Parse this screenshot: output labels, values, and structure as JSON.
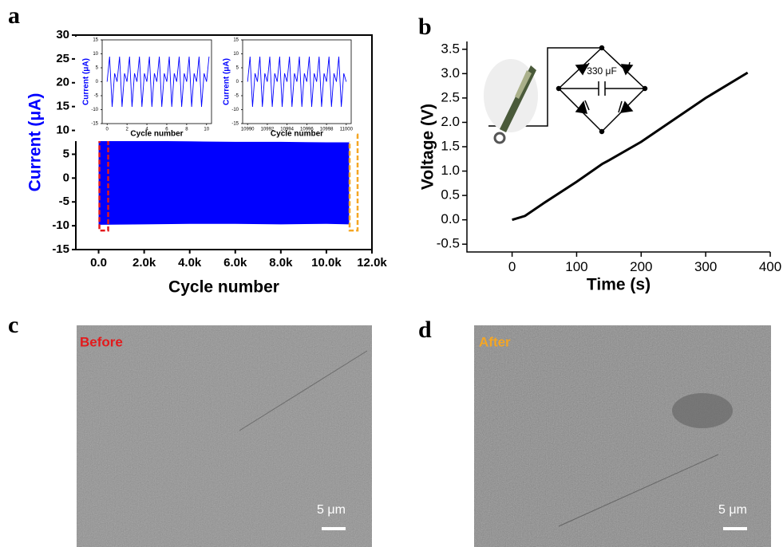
{
  "panel_labels": [
    "a",
    "b",
    "c",
    "d"
  ],
  "chart_data": [
    {
      "type": "area",
      "xlabel": "Cycle number",
      "ylabel": "Current (μA)",
      "color": "#0000ff",
      "x": [
        0,
        2000,
        4000,
        6000,
        8000,
        10000,
        11000
      ],
      "upper": [
        7.9,
        7.8,
        7.7,
        7.6,
        7.6,
        7.5,
        7.5
      ],
      "lower": [
        -9.8,
        -9.7,
        -9.6,
        -9.6,
        -9.7,
        -9.6,
        -9.7
      ],
      "xlim": [
        -1000,
        12000
      ],
      "xticks": [
        {
          "value": 0,
          "label": "0.0"
        },
        {
          "value": 2000,
          "label": "2.0k"
        },
        {
          "value": 4000,
          "label": "4.0k"
        },
        {
          "value": 6000,
          "label": "6.0k"
        },
        {
          "value": 8000,
          "label": "8.0k"
        },
        {
          "value": 10000,
          "label": "10.0k"
        },
        {
          "value": 12000,
          "label": "12.0k"
        }
      ],
      "ylim": [
        -15,
        30
      ],
      "yticks": [
        -15,
        -10,
        -5,
        0,
        5,
        10,
        15,
        20,
        25,
        30
      ],
      "highlights": [
        {
          "x": [
            35,
            420
          ],
          "y": [
            -11,
            9.1
          ],
          "color": "#e31a1c"
        },
        {
          "x": [
            11020,
            11370
          ],
          "y": [
            -11,
            9.1
          ],
          "color": "#f5a623"
        }
      ],
      "insets": [
        {
          "type": "line",
          "xlabel": "Cycle number",
          "ylabel": "Current (μA)",
          "color": "#0000ff",
          "x": [
            0,
            0.25,
            0.5,
            0.75,
            1,
            1.25,
            1.5,
            1.75,
            2,
            2.25,
            2.5,
            2.75,
            3,
            3.25,
            3.5,
            3.75,
            4,
            4.25,
            4.5,
            4.75,
            5,
            5.25,
            5.5,
            5.75,
            6,
            6.25,
            6.5,
            6.75,
            7,
            7.25,
            7.5,
            7.75,
            8,
            8.25,
            8.5,
            8.75,
            9,
            9.25,
            9.5,
            9.75,
            10,
            10.25
          ],
          "values": [
            0,
            9,
            -9,
            3,
            0,
            9,
            -9,
            3,
            0,
            9,
            -9,
            3,
            0,
            9,
            -9,
            3,
            0,
            9,
            -9,
            3,
            0,
            9,
            -9,
            3,
            0,
            9,
            -9,
            3,
            0,
            9,
            -9,
            3,
            0,
            9,
            -9,
            3,
            0,
            9,
            -9,
            3,
            0,
            9
          ],
          "xlim": [
            -0.5,
            10.5
          ],
          "xticks": [
            0,
            2,
            4,
            6,
            8,
            10
          ],
          "ylim": [
            -15,
            15
          ],
          "yticks": [
            -15,
            -10,
            -5,
            0,
            5,
            10,
            15
          ]
        },
        {
          "type": "line",
          "xlabel": "Cycle number",
          "ylabel": "Current (μA)",
          "color": "#0000ff",
          "x": [
            10990,
            10990.25,
            10990.5,
            10990.75,
            10991,
            10991.25,
            10991.5,
            10991.75,
            10992,
            10992.25,
            10992.5,
            10992.75,
            10993,
            10993.25,
            10993.5,
            10993.75,
            10994,
            10994.25,
            10994.5,
            10994.75,
            10995,
            10995.25,
            10995.5,
            10995.75,
            10996,
            10996.25,
            10996.5,
            10996.75,
            10997,
            10997.25,
            10997.5,
            10997.75,
            10998,
            10998.25,
            10998.5,
            10998.75,
            10999,
            10999.25,
            10999.5,
            10999.75,
            11000
          ],
          "values": [
            0,
            9,
            -9,
            3,
            0,
            9,
            -9,
            3,
            0,
            9,
            -9,
            3,
            0,
            9,
            -9,
            3,
            0,
            9,
            -9,
            3,
            0,
            9,
            -9,
            3,
            0,
            9,
            -9,
            3,
            0,
            9,
            -9,
            3,
            0,
            9,
            -9,
            3,
            0,
            9,
            -9,
            3,
            0
          ],
          "xlim": [
            10989.5,
            11000.5
          ],
          "xticks": [
            10990,
            10992,
            10994,
            10996,
            10998,
            11000
          ],
          "ylim": [
            -15,
            15
          ],
          "yticks": [
            -15,
            -10,
            -5,
            0,
            5,
            10,
            15
          ]
        }
      ]
    },
    {
      "type": "line",
      "xlabel": "Time (s)",
      "ylabel": "Voltage (V)",
      "color": "#000000",
      "annotation": "330 μF",
      "x": [
        0,
        20,
        50,
        100,
        140,
        150,
        200,
        250,
        300,
        365
      ],
      "values": [
        0,
        0.08,
        0.35,
        0.78,
        1.15,
        1.22,
        1.6,
        2.05,
        2.5,
        3.02
      ],
      "xlim": [
        -70,
        400
      ],
      "xticks": [
        0,
        100,
        200,
        300,
        400
      ],
      "ylim": [
        -0.66,
        3.66
      ],
      "yticks": [
        -0.5,
        {
          "value": 0,
          "label": "0.0"
        },
        0.5,
        {
          "value": 1,
          "label": "1.0"
        },
        1.5,
        {
          "value": 2,
          "label": "2.0"
        },
        2.5,
        {
          "value": 3,
          "label": "3.0"
        },
        3.5
      ]
    }
  ],
  "images": [
    {
      "label": "Before",
      "scale_bar": "5 μm"
    },
    {
      "label": "After",
      "scale_bar": "5 μm"
    }
  ]
}
